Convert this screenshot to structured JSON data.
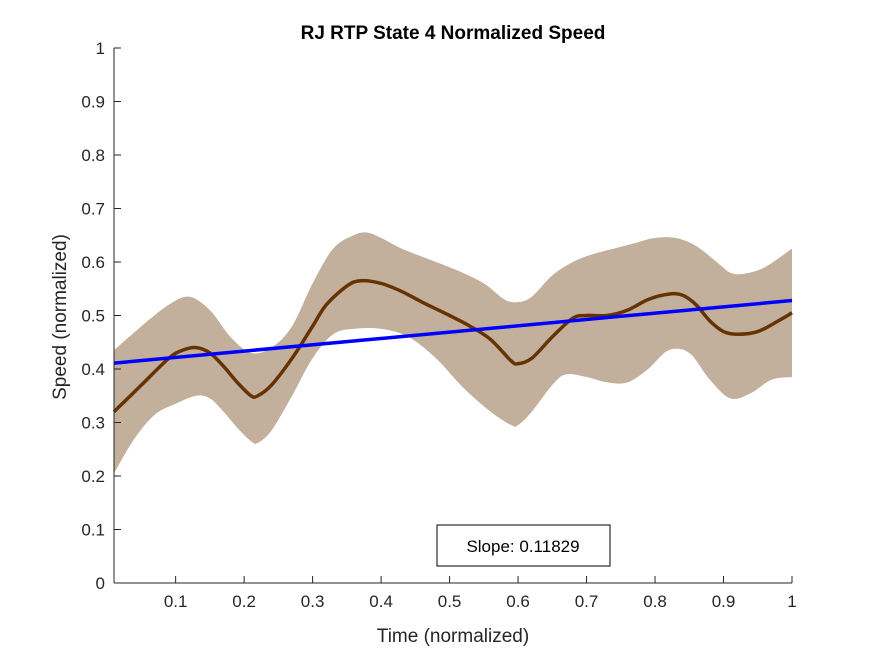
{
  "chart_data": {
    "type": "line",
    "title": "RJ  RTP State 4 Normalized Speed",
    "xlabel": "Time (normalized)",
    "ylabel": "Speed (normalized)",
    "xlim": [
      0.01,
      1
    ],
    "ylim": [
      0,
      1
    ],
    "xticks": [
      0.1,
      0.2,
      0.3,
      0.4,
      0.5,
      0.6,
      0.7,
      0.8,
      0.9,
      1
    ],
    "xtick_labels": [
      "0.1",
      "0.2",
      "0.3",
      "0.4",
      "0.5",
      "0.6",
      "0.7",
      "0.8",
      "0.9",
      "1"
    ],
    "yticks": [
      0,
      0.1,
      0.2,
      0.3,
      0.4,
      0.5,
      0.6,
      0.7,
      0.8,
      0.9,
      1
    ],
    "ytick_labels": [
      "0",
      "0.1",
      "0.2",
      "0.3",
      "0.4",
      "0.5",
      "0.6",
      "0.7",
      "0.8",
      "0.9",
      "1"
    ],
    "grid": false,
    "colors": {
      "mean": "#663300",
      "band": "#c2b09c",
      "fit": "#0000ff"
    },
    "mean": {
      "x": [
        0.01,
        0.05,
        0.09,
        0.11,
        0.13,
        0.15,
        0.17,
        0.19,
        0.21,
        0.22,
        0.24,
        0.27,
        0.3,
        0.32,
        0.35,
        0.37,
        0.4,
        0.43,
        0.46,
        0.5,
        0.53,
        0.56,
        0.59,
        0.6,
        0.62,
        0.65,
        0.68,
        0.7,
        0.73,
        0.76,
        0.79,
        0.82,
        0.84,
        0.86,
        0.88,
        0.9,
        0.92,
        0.95,
        0.98,
        1.0
      ],
      "y": [
        0.32,
        0.37,
        0.42,
        0.435,
        0.44,
        0.43,
        0.405,
        0.375,
        0.35,
        0.35,
        0.37,
        0.42,
        0.48,
        0.52,
        0.555,
        0.565,
        0.56,
        0.545,
        0.525,
        0.5,
        0.48,
        0.455,
        0.415,
        0.41,
        0.42,
        0.46,
        0.495,
        0.5,
        0.5,
        0.51,
        0.53,
        0.54,
        0.538,
        0.52,
        0.49,
        0.47,
        0.465,
        0.47,
        0.49,
        0.505
      ]
    },
    "band_upper": {
      "x": [
        0.01,
        0.05,
        0.09,
        0.12,
        0.15,
        0.18,
        0.21,
        0.24,
        0.27,
        0.3,
        0.33,
        0.36,
        0.38,
        0.4,
        0.43,
        0.47,
        0.51,
        0.55,
        0.58,
        0.6,
        0.62,
        0.65,
        0.68,
        0.71,
        0.74,
        0.77,
        0.8,
        0.83,
        0.86,
        0.89,
        0.91,
        0.93,
        0.96,
        1.0
      ],
      "y": [
        0.435,
        0.48,
        0.52,
        0.535,
        0.51,
        0.46,
        0.43,
        0.44,
        0.48,
        0.56,
        0.625,
        0.65,
        0.655,
        0.645,
        0.625,
        0.605,
        0.585,
        0.56,
        0.53,
        0.525,
        0.535,
        0.575,
        0.6,
        0.615,
        0.625,
        0.635,
        0.645,
        0.645,
        0.63,
        0.6,
        0.58,
        0.578,
        0.59,
        0.625
      ]
    },
    "band_lower": {
      "x": [
        0.01,
        0.04,
        0.07,
        0.1,
        0.13,
        0.15,
        0.17,
        0.19,
        0.21,
        0.22,
        0.24,
        0.27,
        0.3,
        0.33,
        0.36,
        0.4,
        0.44,
        0.48,
        0.52,
        0.56,
        0.59,
        0.6,
        0.62,
        0.65,
        0.67,
        0.7,
        0.73,
        0.76,
        0.79,
        0.82,
        0.85,
        0.88,
        0.91,
        0.94,
        0.97,
        1.0
      ],
      "y": [
        0.205,
        0.27,
        0.315,
        0.335,
        0.35,
        0.345,
        0.32,
        0.29,
        0.265,
        0.262,
        0.285,
        0.35,
        0.42,
        0.465,
        0.475,
        0.475,
        0.46,
        0.42,
        0.365,
        0.32,
        0.295,
        0.295,
        0.32,
        0.37,
        0.39,
        0.385,
        0.375,
        0.375,
        0.4,
        0.435,
        0.43,
        0.38,
        0.345,
        0.355,
        0.38,
        0.385
      ]
    },
    "fit_line": {
      "slope": 0.11829,
      "x": [
        0.01,
        1.0
      ],
      "y": [
        0.411,
        0.528
      ]
    },
    "annotation": {
      "text": "Slope: 0.11829"
    }
  }
}
